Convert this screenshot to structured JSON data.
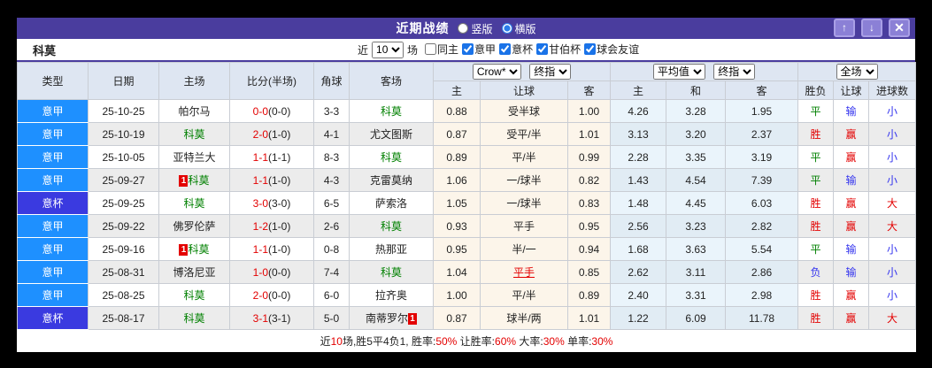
{
  "window": {
    "title": "近期战绩",
    "radio_vertical": "竖版",
    "radio_horizontal": "横版",
    "selected_layout": "横版",
    "buttons": {
      "up": "↑",
      "down": "↓",
      "close": "✕"
    }
  },
  "filter": {
    "team": "科莫",
    "recent_label": "近",
    "recent_value": "10",
    "matches_label": "场",
    "checkboxes": [
      {
        "label": "同主",
        "checked": false
      },
      {
        "label": "意甲",
        "checked": true
      },
      {
        "label": "意杯",
        "checked": true
      },
      {
        "label": "甘伯杯",
        "checked": true
      },
      {
        "label": "球会友谊",
        "checked": true
      }
    ]
  },
  "table": {
    "headers": {
      "type": "类型",
      "date": "日期",
      "home": "主场",
      "score": "比分(半场)",
      "corners": "角球",
      "away": "客场",
      "crow_source": "Crow*",
      "crow_index": "终指",
      "avg_source": "平均值",
      "avg_index": "终指",
      "scope": "全场",
      "crow_home": "主",
      "crow_handicap": "让球",
      "crow_away": "客",
      "avg_home": "主",
      "avg_draw": "和",
      "avg_away": "客",
      "result": "胜负",
      "handicap_result": "让球",
      "goals": "进球数"
    },
    "rows": [
      {
        "league": "意甲",
        "date": "25-10-25",
        "home": {
          "name": "帕尔马",
          "self": false,
          "card": null
        },
        "score_ft": "0-0",
        "score_ht": "(0-0)",
        "corners": "3-3",
        "away": {
          "name": "科莫",
          "self": true,
          "card": null
        },
        "crow": {
          "home": "0.88",
          "handicap": "受半球",
          "away": "1.00",
          "changed": false
        },
        "avg": {
          "home": "4.26",
          "draw": "3.28",
          "away": "1.95"
        },
        "result": "平",
        "handicap_result": "输",
        "goals": "小"
      },
      {
        "league": "意甲",
        "date": "25-10-19",
        "home": {
          "name": "科莫",
          "self": true,
          "card": null
        },
        "score_ft": "2-0",
        "score_ht": "(1-0)",
        "corners": "4-1",
        "away": {
          "name": "尤文图斯",
          "self": false,
          "card": null
        },
        "crow": {
          "home": "0.87",
          "handicap": "受平/半",
          "away": "1.01",
          "changed": false
        },
        "avg": {
          "home": "3.13",
          "draw": "3.20",
          "away": "2.37"
        },
        "result": "胜",
        "handicap_result": "赢",
        "goals": "小"
      },
      {
        "league": "意甲",
        "date": "25-10-05",
        "home": {
          "name": "亚特兰大",
          "self": false,
          "card": null
        },
        "score_ft": "1-1",
        "score_ht": "(1-1)",
        "corners": "8-3",
        "away": {
          "name": "科莫",
          "self": true,
          "card": null
        },
        "crow": {
          "home": "0.89",
          "handicap": "平/半",
          "away": "0.99",
          "changed": false
        },
        "avg": {
          "home": "2.28",
          "draw": "3.35",
          "away": "3.19"
        },
        "result": "平",
        "handicap_result": "赢",
        "goals": "小"
      },
      {
        "league": "意甲",
        "date": "25-09-27",
        "home": {
          "name": "科莫",
          "self": true,
          "card": "left"
        },
        "score_ft": "1-1",
        "score_ht": "(1-0)",
        "corners": "4-3",
        "away": {
          "name": "克雷莫纳",
          "self": false,
          "card": null
        },
        "crow": {
          "home": "1.06",
          "handicap": "一/球半",
          "away": "0.82",
          "changed": false
        },
        "avg": {
          "home": "1.43",
          "draw": "4.54",
          "away": "7.39"
        },
        "result": "平",
        "handicap_result": "输",
        "goals": "小"
      },
      {
        "league": "意杯",
        "date": "25-09-25",
        "home": {
          "name": "科莫",
          "self": true,
          "card": null
        },
        "score_ft": "3-0",
        "score_ht": "(3-0)",
        "corners": "6-5",
        "away": {
          "name": "萨索洛",
          "self": false,
          "card": null
        },
        "crow": {
          "home": "1.05",
          "handicap": "一/球半",
          "away": "0.83",
          "changed": false
        },
        "avg": {
          "home": "1.48",
          "draw": "4.45",
          "away": "6.03"
        },
        "result": "胜",
        "handicap_result": "赢",
        "goals": "大"
      },
      {
        "league": "意甲",
        "date": "25-09-22",
        "home": {
          "name": "佛罗伦萨",
          "self": false,
          "card": null
        },
        "score_ft": "1-2",
        "score_ht": "(1-0)",
        "corners": "2-6",
        "away": {
          "name": "科莫",
          "self": true,
          "card": null
        },
        "crow": {
          "home": "0.93",
          "handicap": "平手",
          "away": "0.95",
          "changed": false
        },
        "avg": {
          "home": "2.56",
          "draw": "3.23",
          "away": "2.82"
        },
        "result": "胜",
        "handicap_result": "赢",
        "goals": "大"
      },
      {
        "league": "意甲",
        "date": "25-09-16",
        "home": {
          "name": "科莫",
          "self": true,
          "card": "left"
        },
        "score_ft": "1-1",
        "score_ht": "(1-0)",
        "corners": "0-8",
        "away": {
          "name": "热那亚",
          "self": false,
          "card": null
        },
        "crow": {
          "home": "0.95",
          "handicap": "半/一",
          "away": "0.94",
          "changed": false
        },
        "avg": {
          "home": "1.68",
          "draw": "3.63",
          "away": "5.54"
        },
        "result": "平",
        "handicap_result": "输",
        "goals": "小"
      },
      {
        "league": "意甲",
        "date": "25-08-31",
        "home": {
          "name": "博洛尼亚",
          "self": false,
          "card": null
        },
        "score_ft": "1-0",
        "score_ht": "(0-0)",
        "corners": "7-4",
        "away": {
          "name": "科莫",
          "self": true,
          "card": null
        },
        "crow": {
          "home": "1.04",
          "handicap": "平手",
          "away": "0.85",
          "changed": true
        },
        "avg": {
          "home": "2.62",
          "draw": "3.11",
          "away": "2.86"
        },
        "result": "负",
        "handicap_result": "输",
        "goals": "小"
      },
      {
        "league": "意甲",
        "date": "25-08-25",
        "home": {
          "name": "科莫",
          "self": true,
          "card": null
        },
        "score_ft": "2-0",
        "score_ht": "(0-0)",
        "corners": "6-0",
        "away": {
          "name": "拉齐奥",
          "self": false,
          "card": null
        },
        "crow": {
          "home": "1.00",
          "handicap": "平/半",
          "away": "0.89",
          "changed": false
        },
        "avg": {
          "home": "2.40",
          "draw": "3.31",
          "away": "2.98"
        },
        "result": "胜",
        "handicap_result": "赢",
        "goals": "小"
      },
      {
        "league": "意杯",
        "date": "25-08-17",
        "home": {
          "name": "科莫",
          "self": true,
          "card": null
        },
        "score_ft": "3-1",
        "score_ht": "(3-1)",
        "corners": "5-0",
        "away": {
          "name": "南蒂罗尔",
          "self": false,
          "card": "right"
        },
        "crow": {
          "home": "0.87",
          "handicap": "球半/两",
          "away": "1.01",
          "changed": false
        },
        "avg": {
          "home": "1.22",
          "draw": "6.09",
          "away": "11.78"
        },
        "result": "胜",
        "handicap_result": "赢",
        "goals": "大"
      }
    ],
    "summary": [
      {
        "t": "近",
        "c": "k"
      },
      {
        "t": "10",
        "c": "r"
      },
      {
        "t": "场,胜5平4负1, 胜率:",
        "c": "k"
      },
      {
        "t": "50%",
        "c": "r"
      },
      {
        "t": " 让胜率:",
        "c": "k"
      },
      {
        "t": "60%",
        "c": "r"
      },
      {
        "t": " 大率:",
        "c": "k"
      },
      {
        "t": "30%",
        "c": "r"
      },
      {
        "t": " 单率:",
        "c": "k"
      },
      {
        "t": "30%",
        "c": "r"
      }
    ]
  },
  "colors": {
    "titlebar": "#4a3d9e",
    "league": {
      "意甲": "#1e90ff",
      "意杯": "#3a3ae0"
    },
    "outcome": {
      "胜": "#e30000",
      "平": "#008000",
      "负": "#3333ee",
      "赢": "#e30000",
      "输": "#3333ee",
      "大": "#e30000",
      "小": "#3333ee"
    },
    "team_self": "#008000",
    "score_fulltime": "#e30000"
  }
}
